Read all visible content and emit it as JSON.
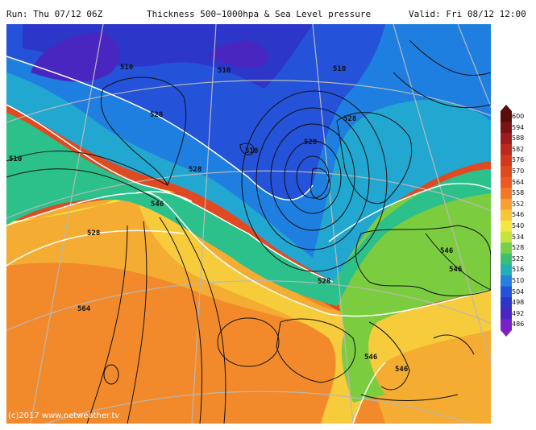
{
  "header": {
    "run": "Run: Thu 07/12 06Z",
    "title": "Thickness 500−1000hpa & Sea Level pressure",
    "valid": "Valid: Fri 08/12 12:00"
  },
  "credit": "(c)2017  www.netweather.tv",
  "legend": {
    "levels": [
      "600",
      "594",
      "588",
      "582",
      "576",
      "570",
      "564",
      "558",
      "552",
      "546",
      "540",
      "534",
      "528",
      "522",
      "516",
      "510",
      "504",
      "498",
      "492",
      "486"
    ],
    "colors": [
      "#5a0c0c",
      "#7a1414",
      "#9c1c1c",
      "#b82a1a",
      "#d2391c",
      "#e2481e",
      "#ec5a22",
      "#f07a28",
      "#f5a030",
      "#f7c73a",
      "#f4e840",
      "#c6e23c",
      "#7ad04a",
      "#3cc070",
      "#22b0b8",
      "#2680e0",
      "#2452d8",
      "#2c36c8",
      "#4a26c0",
      "#7a20c8"
    ]
  },
  "map": {
    "contour_labels": [
      "510",
      "510",
      "510",
      "528",
      "528",
      "510",
      "528",
      "528",
      "510",
      "546",
      "528",
      "528",
      "546",
      "546",
      "564",
      "546",
      "546"
    ]
  }
}
